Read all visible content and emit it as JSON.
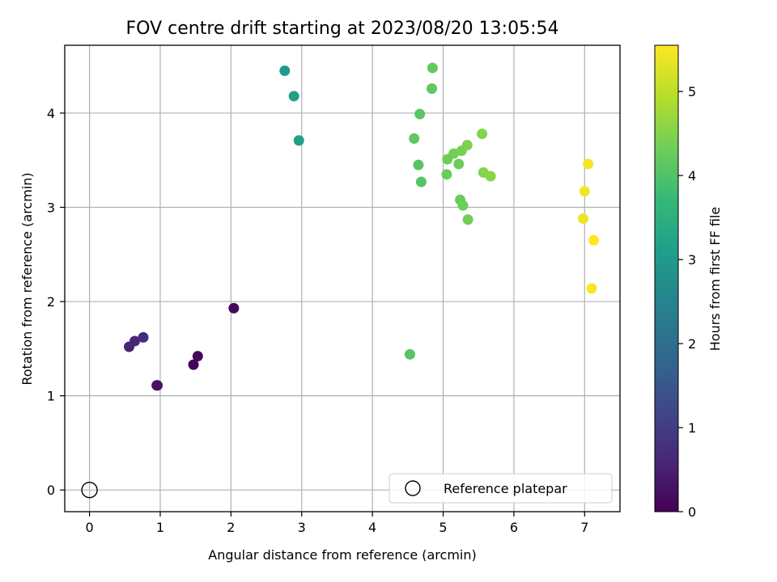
{
  "chart_data": {
    "type": "scatter",
    "title": "FOV centre drift starting at 2023/08/20 13:05:54",
    "xlabel": "Angular distance from reference (arcmin)",
    "ylabel": "Rotation from reference (arcmin)",
    "xlim": [
      -0.35,
      7.5
    ],
    "ylim": [
      -0.23,
      4.72
    ],
    "xticks": [
      0,
      1,
      2,
      3,
      4,
      5,
      6,
      7
    ],
    "yticks": [
      0,
      1,
      2,
      3,
      4
    ],
    "grid": true,
    "legend": {
      "position": "lower-right",
      "entries": [
        "Reference platepar"
      ]
    },
    "colorbar": {
      "label": "Hours from first FF file",
      "range": [
        0,
        5.55
      ],
      "ticks": [
        0,
        1,
        2,
        3,
        4,
        5
      ],
      "colormap": "viridis"
    },
    "reference_point": {
      "x": 0,
      "y": 0
    },
    "points": [
      {
        "x": 0.56,
        "y": 1.52,
        "h": 0.55
      },
      {
        "x": 0.64,
        "y": 1.58,
        "h": 0.6
      },
      {
        "x": 0.76,
        "y": 1.62,
        "h": 0.65
      },
      {
        "x": 0.95,
        "y": 1.11,
        "h": 0.45
      },
      {
        "x": 0.96,
        "y": 1.11,
        "h": 0.25
      },
      {
        "x": 1.47,
        "y": 1.33,
        "h": 0.05
      },
      {
        "x": 1.53,
        "y": 1.42,
        "h": 0.1
      },
      {
        "x": 2.04,
        "y": 1.93,
        "h": 0.15
      },
      {
        "x": 2.76,
        "y": 4.45,
        "h": 3.05
      },
      {
        "x": 2.89,
        "y": 4.18,
        "h": 3.1
      },
      {
        "x": 2.96,
        "y": 3.71,
        "h": 3.15
      },
      {
        "x": 4.53,
        "y": 1.44,
        "h": 4.05
      },
      {
        "x": 4.59,
        "y": 3.73,
        "h": 4.15
      },
      {
        "x": 4.65,
        "y": 3.45,
        "h": 4.05
      },
      {
        "x": 4.67,
        "y": 3.99,
        "h": 4.1
      },
      {
        "x": 4.69,
        "y": 3.27,
        "h": 4.05
      },
      {
        "x": 4.84,
        "y": 4.26,
        "h": 4.15
      },
      {
        "x": 4.85,
        "y": 4.48,
        "h": 4.2
      },
      {
        "x": 5.05,
        "y": 3.35,
        "h": 4.25
      },
      {
        "x": 5.06,
        "y": 3.51,
        "h": 4.3
      },
      {
        "x": 5.15,
        "y": 3.57,
        "h": 4.35
      },
      {
        "x": 5.22,
        "y": 3.46,
        "h": 4.3
      },
      {
        "x": 5.24,
        "y": 3.08,
        "h": 4.25
      },
      {
        "x": 5.26,
        "y": 3.6,
        "h": 4.4
      },
      {
        "x": 5.28,
        "y": 3.02,
        "h": 4.3
      },
      {
        "x": 5.34,
        "y": 3.66,
        "h": 4.45
      },
      {
        "x": 5.35,
        "y": 2.87,
        "h": 4.35
      },
      {
        "x": 5.55,
        "y": 3.78,
        "h": 4.5
      },
      {
        "x": 5.57,
        "y": 3.37,
        "h": 4.5
      },
      {
        "x": 5.67,
        "y": 3.33,
        "h": 4.55
      },
      {
        "x": 6.98,
        "y": 2.88,
        "h": 5.4
      },
      {
        "x": 7.0,
        "y": 3.17,
        "h": 5.45
      },
      {
        "x": 7.05,
        "y": 3.46,
        "h": 5.5
      },
      {
        "x": 7.1,
        "y": 2.14,
        "h": 5.5
      },
      {
        "x": 7.13,
        "y": 2.65,
        "h": 5.55
      }
    ]
  }
}
